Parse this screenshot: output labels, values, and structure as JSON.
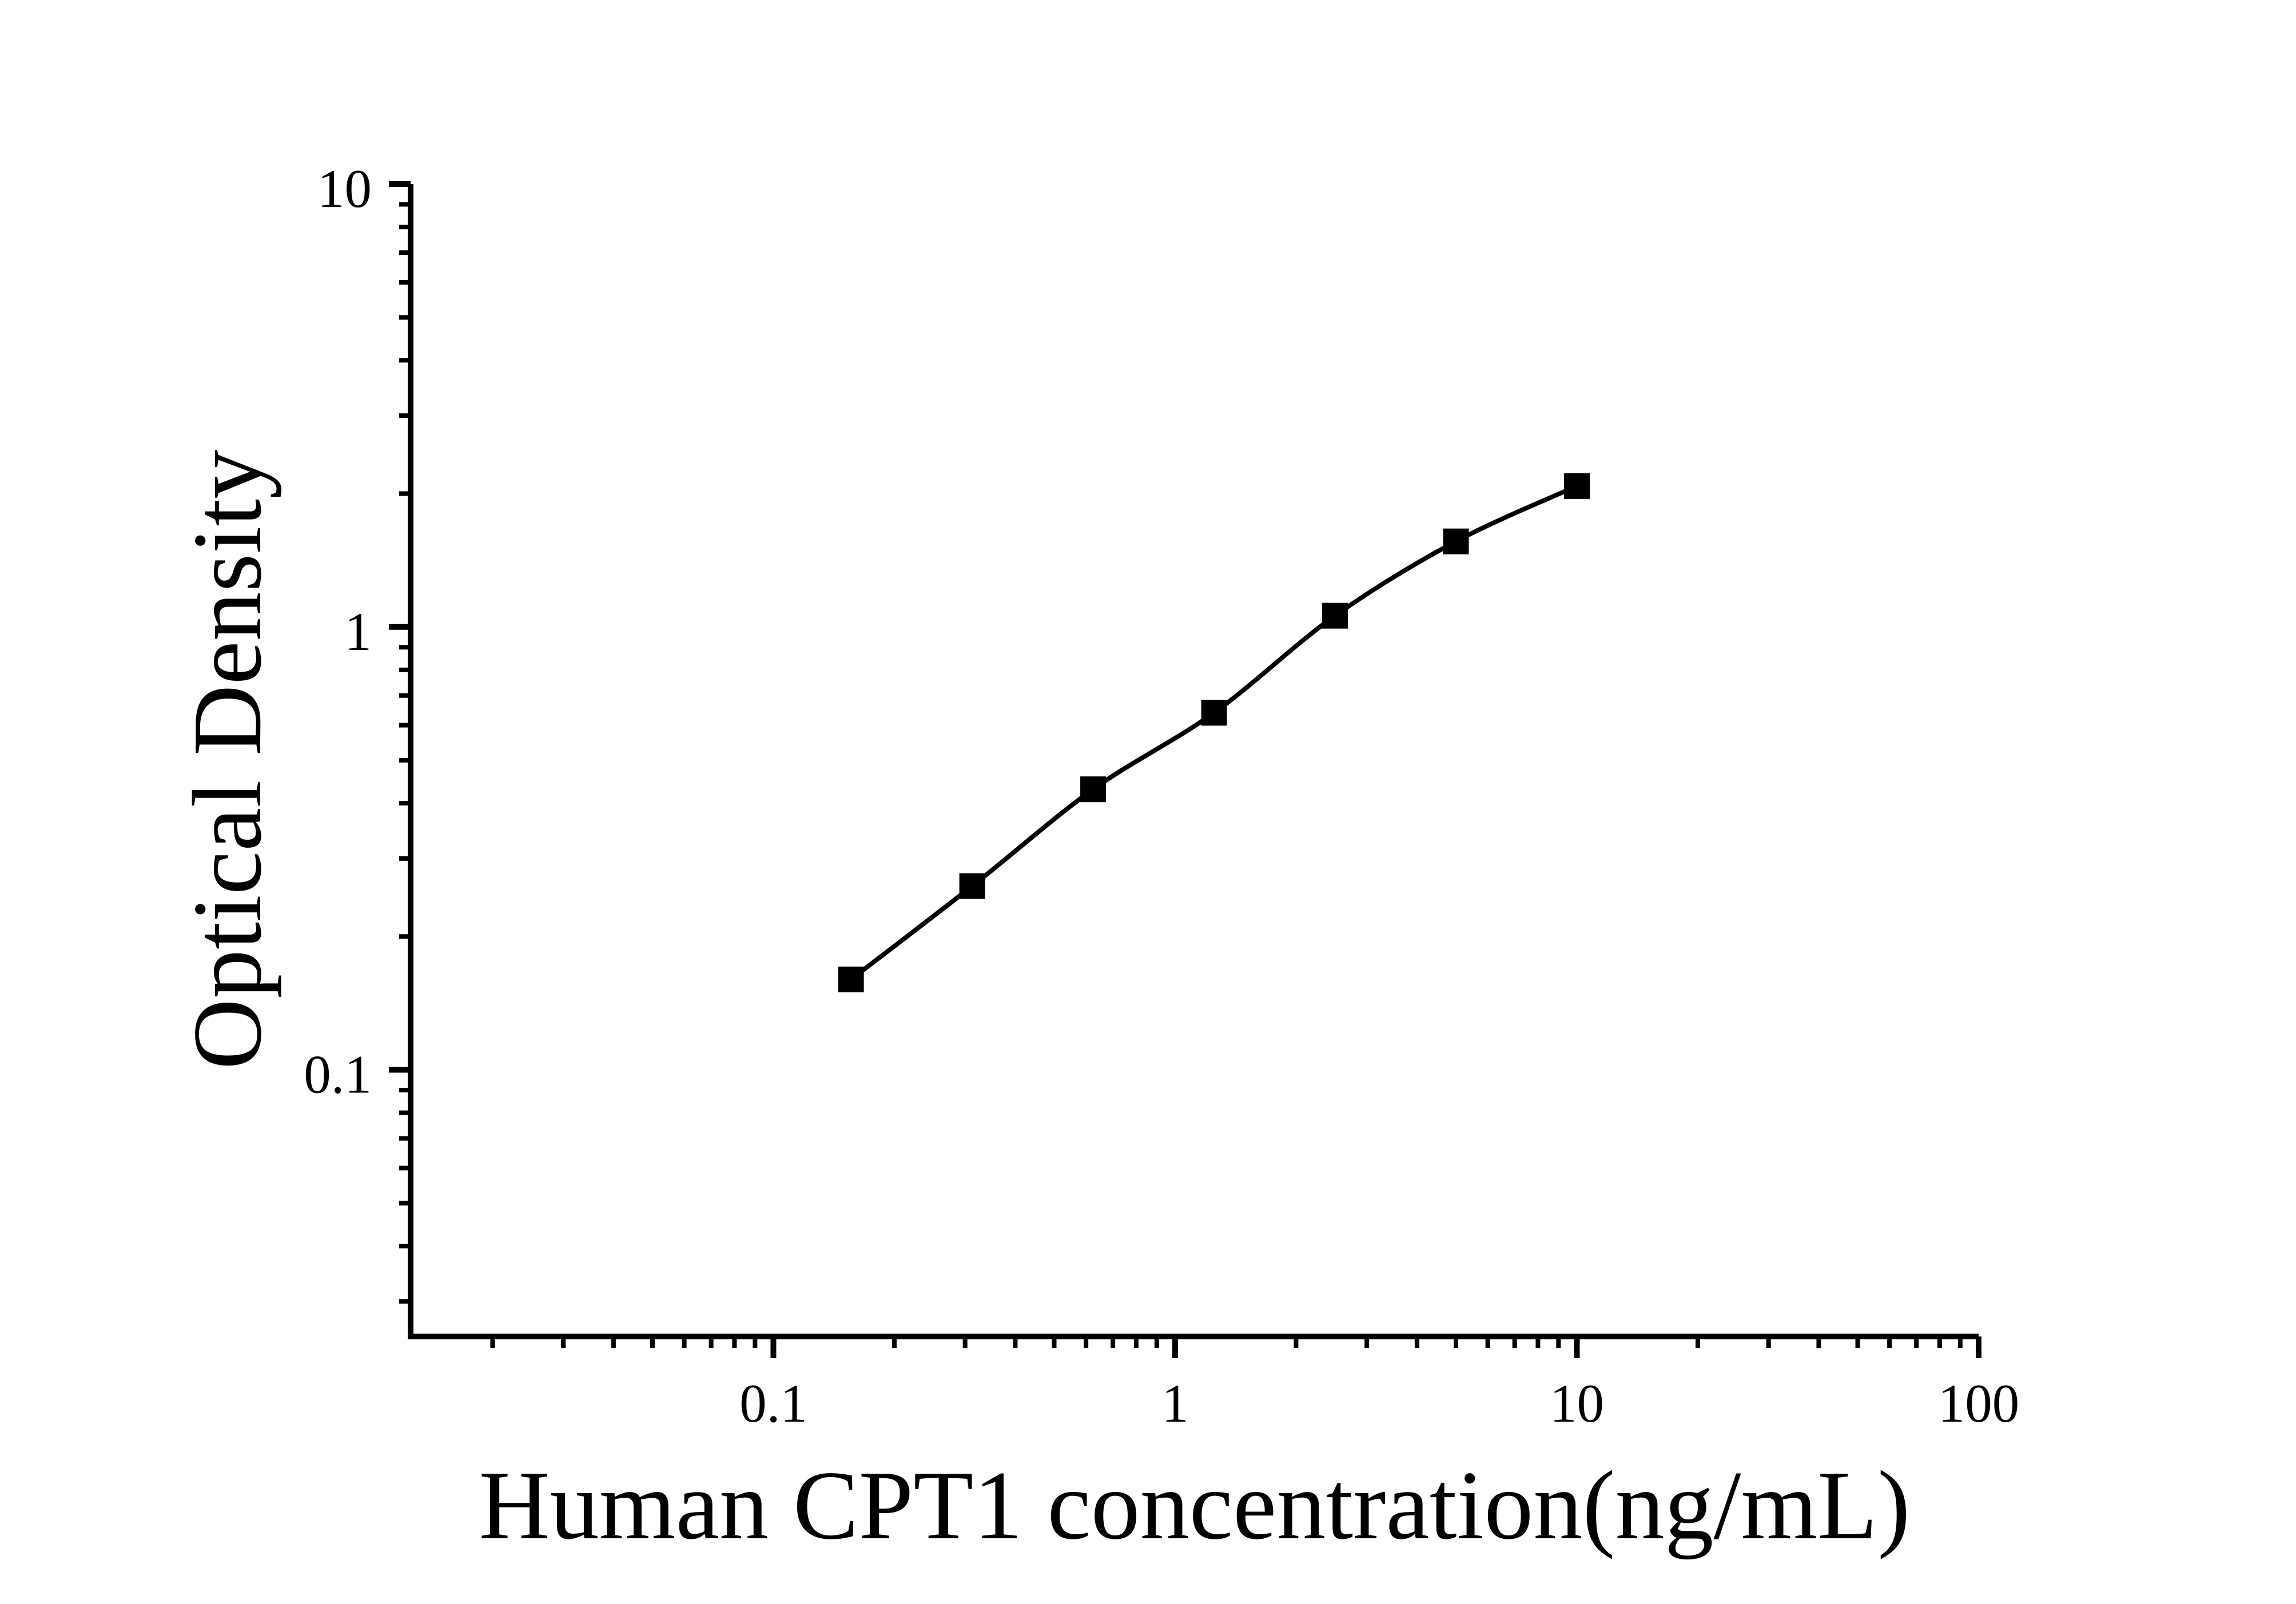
{
  "colors": {
    "background": "#ffffff",
    "axis": "#000000",
    "curve": "#000000",
    "marker": "#000000",
    "text": "#000000"
  },
  "chart_data": {
    "type": "line",
    "title": "",
    "xlabel": "Human CPT1 concentration(ng/mL)",
    "ylabel": "Optical Density",
    "xscale": "log",
    "yscale": "log",
    "xlim": [
      0.0125,
      100
    ],
    "ylim": [
      0.025,
      10
    ],
    "grid": false,
    "legend": "none",
    "marker_shape": "filled-square",
    "series": [
      {
        "name": "standard-curve",
        "x": [
          0.156,
          0.3125,
          0.625,
          1.25,
          2.5,
          5,
          10
        ],
        "y": [
          0.16,
          0.26,
          0.43,
          0.64,
          1.06,
          1.56,
          2.08
        ]
      }
    ],
    "x_major_ticks": [
      {
        "value": 0.1,
        "label": "0.1"
      },
      {
        "value": 1,
        "label": "1"
      },
      {
        "value": 10,
        "label": "10"
      },
      {
        "value": 100,
        "label": "100"
      }
    ],
    "y_major_ticks": [
      {
        "value": 10,
        "label": "10"
      },
      {
        "value": 1,
        "label": "1"
      },
      {
        "value": 0.1,
        "label": "0.1"
      }
    ]
  }
}
